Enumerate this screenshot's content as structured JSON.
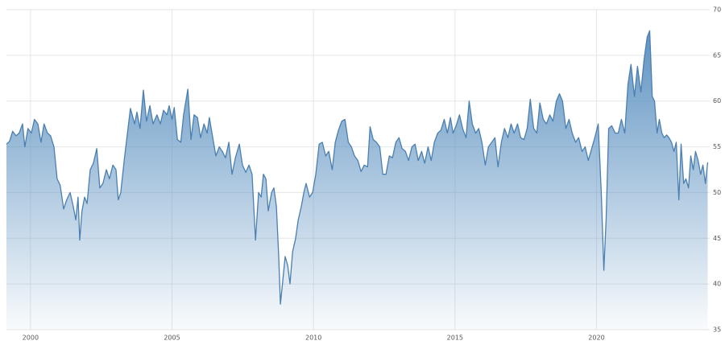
{
  "chart_data": {
    "type": "area",
    "x": [
      1999.15,
      1999.26,
      1999.37,
      1999.49,
      1999.6,
      1999.72,
      1999.8,
      1999.91,
      2000.03,
      2000.14,
      2000.26,
      2000.37,
      2000.48,
      2000.6,
      2000.71,
      2000.83,
      2000.94,
      2001.05,
      2001.17,
      2001.28,
      2001.4,
      2001.51,
      2001.6,
      2001.68,
      2001.74,
      2001.82,
      2001.91,
      2002.0,
      2002.11,
      2002.22,
      2002.34,
      2002.45,
      2002.56,
      2002.68,
      2002.79,
      2002.91,
      2003.02,
      2003.1,
      2003.19,
      2003.33,
      2003.53,
      2003.68,
      2003.76,
      2003.87,
      2003.99,
      2004.1,
      2004.22,
      2004.33,
      2004.47,
      2004.59,
      2004.7,
      2004.82,
      2004.9,
      2005.0,
      2005.08,
      2005.19,
      2005.31,
      2005.41,
      2005.56,
      2005.67,
      2005.78,
      2005.9,
      2006.01,
      2006.13,
      2006.24,
      2006.32,
      2006.44,
      2006.55,
      2006.67,
      2006.78,
      2006.89,
      2007.01,
      2007.12,
      2007.24,
      2007.38,
      2007.49,
      2007.61,
      2007.72,
      2007.83,
      2007.95,
      2008.06,
      2008.15,
      2008.23,
      2008.32,
      2008.4,
      2008.52,
      2008.6,
      2008.69,
      2008.77,
      2008.83,
      2008.92,
      2009.0,
      2009.09,
      2009.17,
      2009.26,
      2009.37,
      2009.46,
      2009.57,
      2009.66,
      2009.74,
      2009.86,
      2009.97,
      2010.08,
      2010.2,
      2010.31,
      2010.43,
      2010.54,
      2010.66,
      2010.77,
      2010.88,
      2011.0,
      2011.11,
      2011.23,
      2011.34,
      2011.45,
      2011.57,
      2011.68,
      2011.79,
      2011.91,
      2012.0,
      2012.11,
      2012.22,
      2012.34,
      2012.45,
      2012.56,
      2012.68,
      2012.79,
      2012.91,
      2013.02,
      2013.13,
      2013.25,
      2013.36,
      2013.48,
      2013.59,
      2013.7,
      2013.82,
      2013.93,
      2014.05,
      2014.16,
      2014.27,
      2014.39,
      2014.5,
      2014.62,
      2014.73,
      2014.84,
      2014.93,
      2015.04,
      2015.16,
      2015.27,
      2015.39,
      2015.5,
      2015.61,
      2015.73,
      2015.84,
      2015.95,
      2016.07,
      2016.18,
      2016.3,
      2016.41,
      2016.52,
      2016.64,
      2016.75,
      2016.87,
      2016.98,
      2017.09,
      2017.21,
      2017.32,
      2017.44,
      2017.55,
      2017.66,
      2017.78,
      2017.89,
      2018.0,
      2018.12,
      2018.23,
      2018.35,
      2018.46,
      2018.58,
      2018.69,
      2018.8,
      2018.92,
      2019.03,
      2019.14,
      2019.26,
      2019.37,
      2019.49,
      2019.6,
      2019.71,
      2019.83,
      2019.94,
      2020.06,
      2020.17,
      2020.26,
      2020.34,
      2020.43,
      2020.54,
      2020.66,
      2020.77,
      2020.88,
      2021.0,
      2021.11,
      2021.22,
      2021.34,
      2021.45,
      2021.57,
      2021.68,
      2021.79,
      2021.88,
      2021.97,
      2022.05,
      2022.14,
      2022.22,
      2022.31,
      2022.39,
      2022.48,
      2022.56,
      2022.65,
      2022.74,
      2022.82,
      2022.91,
      2022.99,
      2023.08,
      2023.16,
      2023.25,
      2023.33,
      2023.42,
      2023.5,
      2023.59,
      2023.68,
      2023.76,
      2023.85,
      2023.93
    ],
    "series": [
      {
        "color": "#4a7fb0",
        "values": [
          55.3,
          55.6,
          56.7,
          56.2,
          56.5,
          57.5,
          55.0,
          57.0,
          56.5,
          58.0,
          57.5,
          55.5,
          57.5,
          56.5,
          56.2,
          55.0,
          51.5,
          50.8,
          48.2,
          49.2,
          50.0,
          48.5,
          47.0,
          49.5,
          44.8,
          48.0,
          49.5,
          48.8,
          52.5,
          53.2,
          54.8,
          50.5,
          51.0,
          52.5,
          51.5,
          53.0,
          52.5,
          49.2,
          50.0,
          54.0,
          59.2,
          57.5,
          58.8,
          57.0,
          61.2,
          57.8,
          59.5,
          57.5,
          58.5,
          57.5,
          59.0,
          58.5,
          59.5,
          58.0,
          59.3,
          55.8,
          55.5,
          58.5,
          61.3,
          55.8,
          58.5,
          58.2,
          56.0,
          57.5,
          56.5,
          58.2,
          56.0,
          54.0,
          55.0,
          54.5,
          53.8,
          55.5,
          52.0,
          53.8,
          55.3,
          53.0,
          52.2,
          53.0,
          52.0,
          44.8,
          50.0,
          49.5,
          52.0,
          51.5,
          48.0,
          50.0,
          50.5,
          48.5,
          43.0,
          37.8,
          40.5,
          43.0,
          42.0,
          40.0,
          43.5,
          45.0,
          47.0,
          48.5,
          50.0,
          51.0,
          49.5,
          50.0,
          52.0,
          55.3,
          55.5,
          54.0,
          54.5,
          52.5,
          55.5,
          56.8,
          57.8,
          58.0,
          55.5,
          55.0,
          54.0,
          53.5,
          52.3,
          53.0,
          52.8,
          57.2,
          55.8,
          55.5,
          55.0,
          52.0,
          52.0,
          54.0,
          53.8,
          55.5,
          56.0,
          54.8,
          54.5,
          53.5,
          55.0,
          55.3,
          53.5,
          54.5,
          53.2,
          55.0,
          53.5,
          55.5,
          56.5,
          56.8,
          58.0,
          56.5,
          58.2,
          56.5,
          57.3,
          58.5,
          57.0,
          56.0,
          60.0,
          57.5,
          56.5,
          57.0,
          55.5,
          53.0,
          55.0,
          55.5,
          56.0,
          52.8,
          55.5,
          57.0,
          56.0,
          57.5,
          56.5,
          57.5,
          56.0,
          55.8,
          57.0,
          60.2,
          57.0,
          56.5,
          59.8,
          58.0,
          57.5,
          58.5,
          57.8,
          60.0,
          60.8,
          60.0,
          57.0,
          58.0,
          56.5,
          55.5,
          56.0,
          54.5,
          55.0,
          53.5,
          54.8,
          56.0,
          57.5,
          50.0,
          41.5,
          47.0,
          57.0,
          57.3,
          56.5,
          56.5,
          58.0,
          56.5,
          61.8,
          64.0,
          60.5,
          63.8,
          61.0,
          64.5,
          67.0,
          67.7,
          60.5,
          60.0,
          56.5,
          58.0,
          56.5,
          56.0,
          56.3,
          56.0,
          55.5,
          54.5,
          55.5,
          49.2,
          55.3,
          51.0,
          51.5,
          50.5,
          54.0,
          52.5,
          54.5,
          53.5,
          52.0,
          53.0,
          51.0,
          53.3
        ]
      }
    ],
    "xlim": [
      1999.15,
      2024.0
    ],
    "ylim": [
      35,
      70
    ],
    "xticks": [
      2000,
      2005,
      2010,
      2015,
      2020
    ],
    "yticks": [
      35,
      40,
      45,
      50,
      55,
      60,
      65,
      70
    ],
    "grid": true
  }
}
